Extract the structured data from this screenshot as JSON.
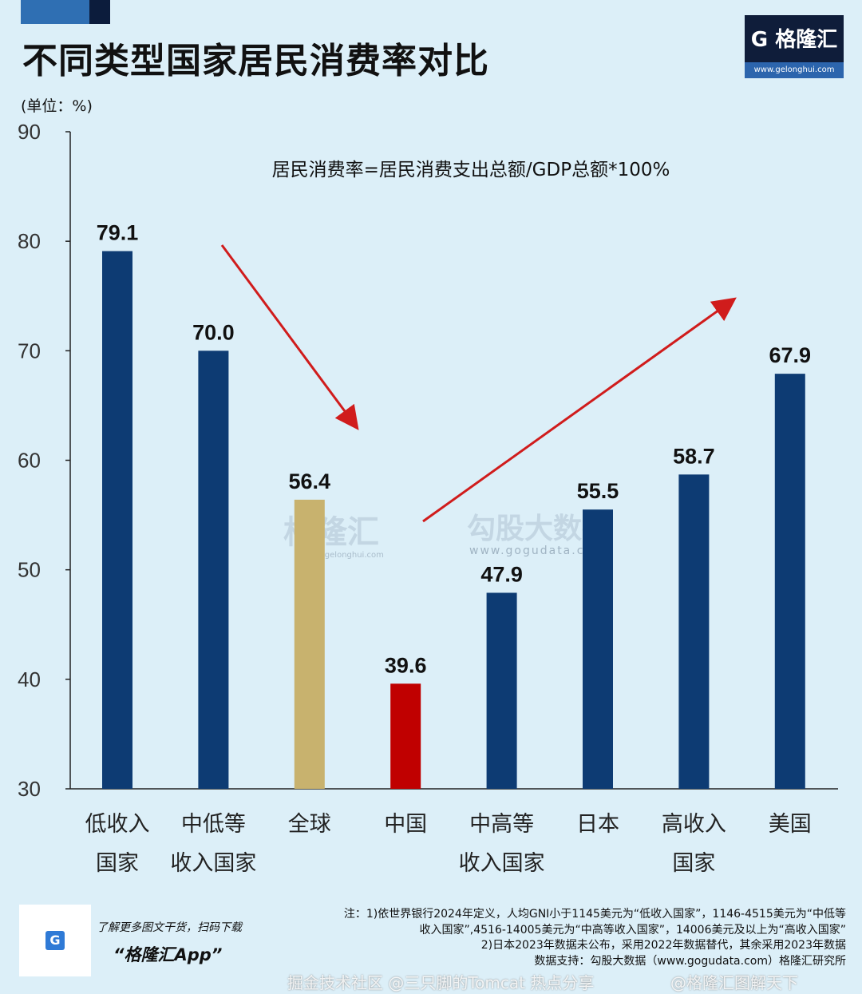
{
  "header": {
    "title": "不同类型国家居民消费率对比",
    "unit": "(单位：%)",
    "logo_text": "格隆汇",
    "logo_url": "www.gelonghui.com"
  },
  "chart_data": {
    "type": "bar",
    "title": "不同类型国家居民消费率对比",
    "ylabel": "(单位：%)",
    "annotation": "居民消费率=居民消费支出总额/GDP总额*100%",
    "ylim": [
      30,
      90
    ],
    "yticks": [
      30,
      40,
      50,
      60,
      70,
      80,
      90
    ],
    "categories": [
      "低收入\n国家",
      "中低等\n收入国家",
      "全球",
      "中国",
      "中高等\n收入国家",
      "日本",
      "高收入\n国家",
      "美国"
    ],
    "values": [
      79.1,
      70.0,
      56.4,
      39.6,
      47.9,
      55.5,
      58.7,
      67.9
    ],
    "value_labels": [
      "79.1",
      "70.0",
      "56.4",
      "39.6",
      "47.9",
      "55.5",
      "58.7",
      "67.9"
    ],
    "bar_colors": [
      "#0d3b73",
      "#0d3b73",
      "#c8b26e",
      "#c00000",
      "#0d3b73",
      "#0d3b73",
      "#0d3b73",
      "#0d3b73"
    ],
    "arrow_color": "#d01c1c",
    "grid": false,
    "watermark": [
      "格隆汇",
      "www.gelonghui.com",
      "勾股大数据",
      "www.gogudata.com"
    ]
  },
  "footer": {
    "promo_line": "了解更多图文干货，扫码下载",
    "promo_app": "“格隆汇App”",
    "notes": [
      "注：1)依世界银行2024年定义，人均GNI小于1145美元为“低收入国家”，1146-4515美元为“中低等",
      "收入国家”,4516-14005美元为“中高等收入国家”，14006美元及以上为“高收入国家”",
      "2)日本2023年数据未公布，采用2022年数据替代，其余采用2023年数据",
      "数据支持：勾股大数据（www.gogudata.com）格隆汇研究所"
    ],
    "watermark_1": "掘金技术社区 @三只脚的Tomcat 热点分享",
    "watermark_2": "@格隆汇图解天下"
  }
}
